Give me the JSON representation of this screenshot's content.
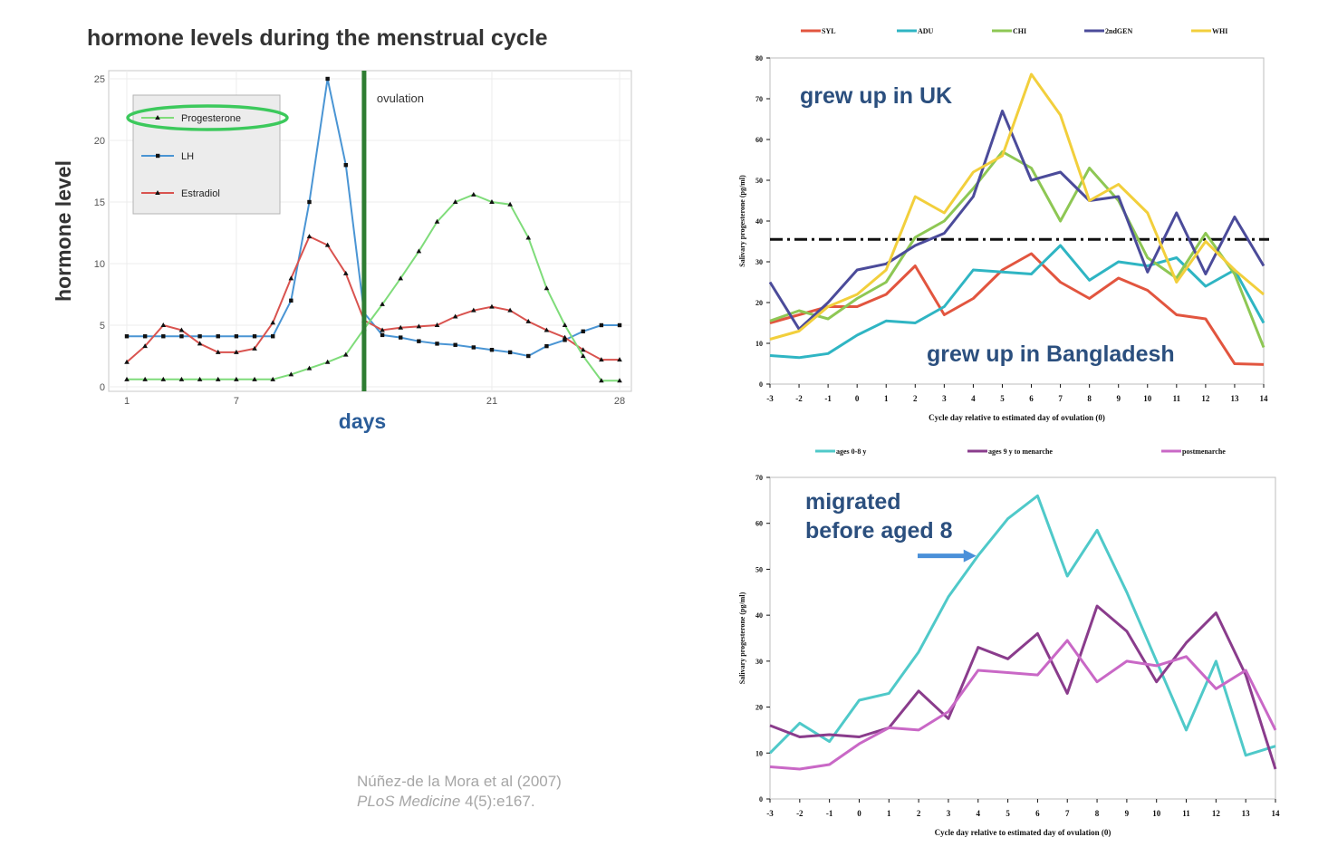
{
  "page": {
    "title": "hormone levels during the menstrual cycle",
    "citation_line1": "Núñez-de la Mora et al (2007)",
    "citation_journal": "PLoS Medicine",
    "citation_rest": " 4(5):e167."
  },
  "chart_data": [
    {
      "id": "hormones",
      "type": "line",
      "xlabel": "days",
      "ylabel": "hormone level",
      "xlim": [
        1,
        28
      ],
      "ylim": [
        0,
        25
      ],
      "xticks": [
        1,
        7,
        21,
        28
      ],
      "yticks": [
        0,
        5,
        10,
        15,
        20,
        25
      ],
      "annotation": "ovulation",
      "ovulation_day": 14,
      "legend": "top-left",
      "x": [
        1,
        2,
        3,
        4,
        5,
        6,
        7,
        8,
        9,
        10,
        11,
        12,
        13,
        14,
        15,
        16,
        17,
        18,
        19,
        20,
        21,
        22,
        23,
        24,
        25,
        26,
        27,
        28
      ],
      "series": [
        {
          "name": "Progesterone",
          "color": "#7fdc7a",
          "highlighted": true,
          "values": [
            0.6,
            0.6,
            0.6,
            0.6,
            0.6,
            0.6,
            0.6,
            0.6,
            0.6,
            1.0,
            1.5,
            2.0,
            2.6,
            4.7,
            6.7,
            8.8,
            11.0,
            13.4,
            15.0,
            15.6,
            15.0,
            14.8,
            12.1,
            8.0,
            5.0,
            2.5,
            0.5,
            0.5
          ]
        },
        {
          "name": "LH",
          "color": "#4a95d4",
          "values": [
            4.1,
            4.1,
            4.1,
            4.1,
            4.1,
            4.1,
            4.1,
            4.1,
            4.1,
            7.0,
            15.0,
            25.0,
            18.0,
            6.0,
            4.2,
            4.0,
            3.7,
            3.5,
            3.4,
            3.2,
            3.0,
            2.8,
            2.5,
            3.3,
            3.8,
            4.5,
            5.0,
            5.0
          ]
        },
        {
          "name": "Estradiol",
          "color": "#d9534f",
          "values": [
            2.0,
            3.3,
            5.0,
            4.6,
            3.5,
            2.8,
            2.8,
            3.1,
            5.2,
            8.8,
            12.2,
            11.5,
            9.2,
            5.4,
            4.6,
            4.8,
            4.9,
            5.0,
            5.7,
            6.2,
            6.5,
            6.2,
            5.3,
            4.6,
            4.0,
            3.0,
            2.2,
            2.2
          ]
        }
      ]
    },
    {
      "id": "uk-vs-bangladesh",
      "type": "line",
      "xlabel": "Cycle day relative to estimated day of ovulation (0)",
      "ylabel": "Salivary progesterone (pg/ml)",
      "x": [
        -3,
        -2,
        -1,
        0,
        1,
        2,
        3,
        4,
        5,
        6,
        7,
        8,
        9,
        10,
        11,
        12,
        13,
        14
      ],
      "ylim": [
        0,
        80
      ],
      "yticks": [
        0,
        10,
        20,
        30,
        40,
        50,
        60,
        70,
        80
      ],
      "reference_line": 35.5,
      "annotations": [
        "grew up in UK",
        "grew up in Bangladesh"
      ],
      "legend": "top",
      "series": [
        {
          "name": "SYL",
          "color": "#e2553f",
          "values": [
            15,
            17,
            19,
            19,
            22,
            29,
            17,
            21,
            28,
            32,
            25,
            21,
            26,
            23,
            17,
            16,
            5,
            4.8
          ]
        },
        {
          "name": "ADU",
          "color": "#2fb5c3",
          "values": [
            7,
            6.5,
            7.5,
            12,
            15.5,
            15,
            19,
            28,
            27.5,
            27,
            34,
            25.5,
            30,
            29,
            31,
            24,
            28,
            15
          ]
        },
        {
          "name": "CHI",
          "color": "#8ec754",
          "values": [
            15.5,
            18,
            16,
            21,
            25,
            36,
            40,
            48,
            57,
            53,
            40,
            53,
            45,
            31,
            26,
            37,
            27,
            9
          ]
        },
        {
          "name": "2ndGEN",
          "color": "#4b4b9a",
          "values": [
            25,
            13.5,
            20,
            28,
            29.5,
            34,
            37,
            46,
            67,
            50,
            52,
            45,
            46,
            27.5,
            42,
            27,
            41,
            29
          ]
        },
        {
          "name": "WHI",
          "color": "#f2cf3c",
          "values": [
            11,
            13,
            19,
            22,
            28,
            46,
            42,
            52,
            56,
            76,
            66,
            45,
            49,
            42,
            25,
            35,
            28,
            22
          ]
        }
      ]
    },
    {
      "id": "migration-age",
      "type": "line",
      "xlabel": "Cycle day relative to estimated day of ovulation (0)",
      "ylabel": "Salivary progesterone (pg/ml)",
      "x": [
        -3,
        -2,
        -1,
        0,
        1,
        2,
        3,
        4,
        5,
        6,
        7,
        8,
        9,
        10,
        11,
        12,
        13,
        14
      ],
      "ylim": [
        0,
        70
      ],
      "yticks": [
        0,
        10,
        20,
        30,
        40,
        50,
        60,
        70
      ],
      "annotation": [
        "migrated",
        "before aged 8"
      ],
      "arrow_target": {
        "x": 4,
        "y": 53.5
      },
      "legend": "top",
      "series": [
        {
          "name": "ages 0-8 y",
          "color": "#4fc9c9",
          "values": [
            10,
            16.5,
            12.5,
            21.5,
            23,
            32,
            44,
            53,
            61,
            66,
            48.5,
            58.5,
            45,
            30,
            15,
            30,
            9.5,
            11.5
          ]
        },
        {
          "name": "ages 9 y to menarche",
          "color": "#8a3c8c",
          "values": [
            16,
            13.5,
            14,
            13.5,
            15.5,
            23.5,
            17.5,
            33,
            30.5,
            36,
            23,
            42,
            36.5,
            25.5,
            34,
            40.5,
            27,
            6.5
          ]
        },
        {
          "name": "postmenarche",
          "color": "#c968c6",
          "values": [
            7,
            6.5,
            7.5,
            12,
            15.5,
            15,
            19,
            28,
            27.5,
            27,
            34.5,
            25.5,
            30,
            29,
            31,
            24,
            28,
            15
          ]
        }
      ]
    }
  ]
}
